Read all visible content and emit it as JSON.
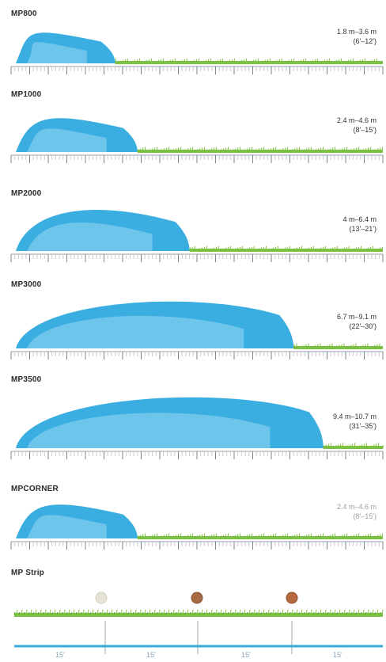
{
  "colors": {
    "spray_dark": "#3aaee0",
    "spray_light": "#8fd3f2",
    "grass": "#7cc142",
    "grass_dark": "#5aa22c",
    "ruler": "#c9ccd0",
    "water_line": "#39a9dc"
  },
  "panels": [
    {
      "title": "MP800",
      "range_metric": "1.8 m–3.6 m",
      "range_imperial": "(6'–12')",
      "reach": 0.28,
      "greyed": false
    },
    {
      "title": "MP1000",
      "range_metric": "2.4 m–4.6 m",
      "range_imperial": "(8'–15')",
      "reach": 0.34,
      "greyed": false
    },
    {
      "title": "MP2000",
      "range_metric": "4 m–6.4 m",
      "range_imperial": "(13'–21')",
      "reach": 0.48,
      "greyed": false
    },
    {
      "title": "MP3000",
      "range_metric": "6.7 m–9.1 m",
      "range_imperial": "(22'–30')",
      "reach": 0.76,
      "greyed": false
    },
    {
      "title": "MP3500",
      "range_metric": "9.4 m–10.7 m",
      "range_imperial": "(31'–35')",
      "reach": 0.84,
      "greyed": false
    },
    {
      "title": "MPCORNER",
      "range_metric": "2.4 m–4.6 m",
      "range_imperial": "(8'–15')",
      "reach": 0.34,
      "greyed": true
    }
  ],
  "strip": {
    "title": "MP Strip",
    "segment_labels": [
      "15'",
      "15'",
      "15'",
      "15'"
    ]
  }
}
